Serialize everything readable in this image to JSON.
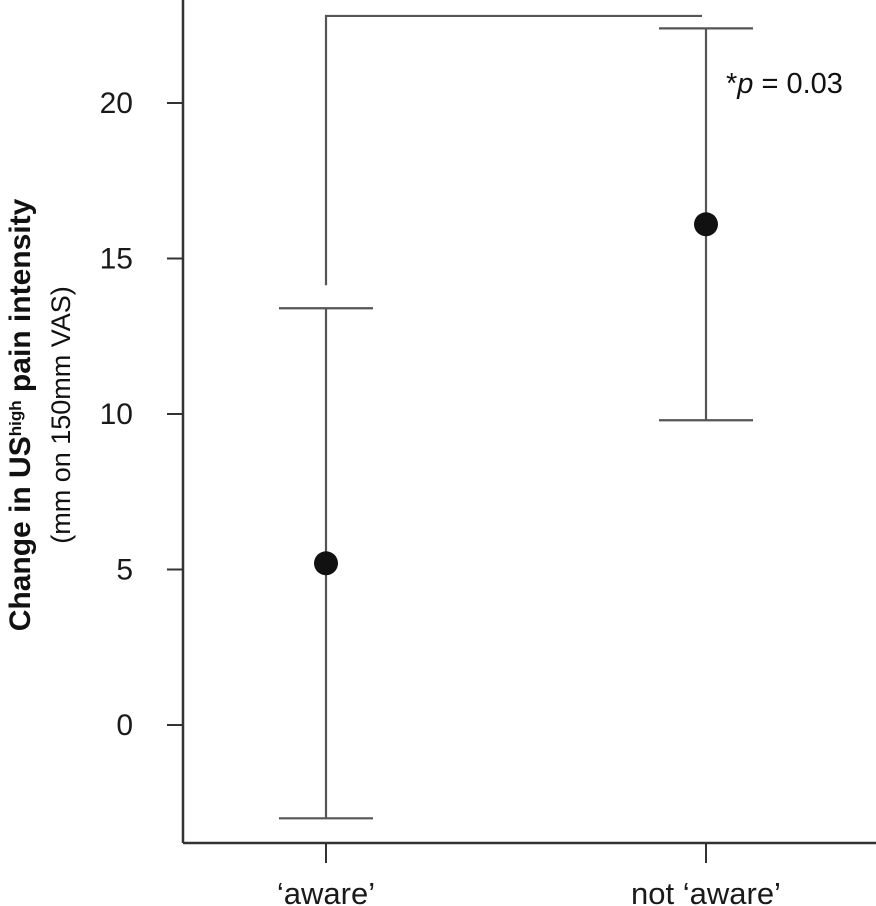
{
  "chart_data": {
    "type": "scatter",
    "categories": [
      "‘aware’",
      "not ‘aware’"
    ],
    "points": [
      {
        "category": "‘aware’",
        "mean": 5.2,
        "lower": -3.0,
        "upper": 13.4
      },
      {
        "category": "not ‘aware’",
        "mean": 16.1,
        "lower": 9.8,
        "upper": 22.4
      }
    ],
    "ylabel": {
      "prefix": "Change in US",
      "superscript": "high",
      "suffix": " pain intensity",
      "units": "(mm on 150mm VAS)"
    },
    "yticks": [
      0,
      5,
      10,
      15,
      20
    ],
    "ylim": [
      -4,
      23.5
    ],
    "annotation": {
      "star": "*",
      "p_symbol": "p",
      "rest": " = 0.03"
    },
    "bracket_y": 22.8,
    "grid": false,
    "colors": {
      "line": "#555555",
      "marker": "#111111",
      "axis": "#333333"
    }
  }
}
